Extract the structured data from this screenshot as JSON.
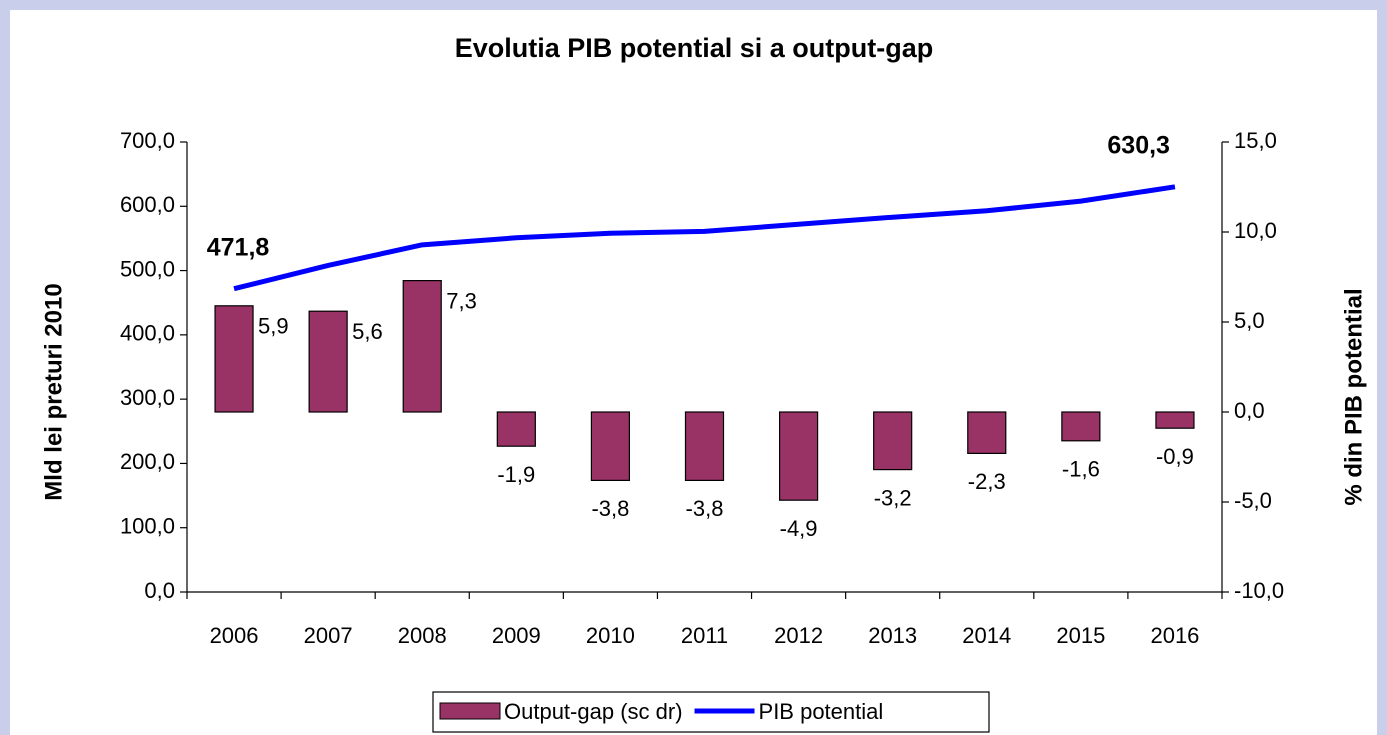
{
  "chart_data": {
    "type": "bar_line",
    "title": "Evolutia PIB potential si a output-gap",
    "y_label": "Mld lei preturi 2010",
    "y2_label": "% din PIB potential",
    "categories": [
      "2006",
      "2007",
      "2008",
      "2009",
      "2010",
      "2011",
      "2012",
      "2013",
      "2014",
      "2015",
      "2016"
    ],
    "series": [
      {
        "name": "Output-gap (sc dr)",
        "type": "bar",
        "axis": "y2",
        "color": "#993366",
        "values": [
          5.9,
          5.6,
          7.3,
          -1.9,
          -3.8,
          -3.8,
          -4.9,
          -3.2,
          -2.3,
          -1.6,
          -0.9
        ],
        "value_labels": [
          "5,9",
          "5,6",
          "7,3",
          "-1,9",
          "-3,8",
          "-3,8",
          "-4,9",
          "-3,2",
          "-2,3",
          "-1,6",
          "-0,9"
        ]
      },
      {
        "name": "PIB potential",
        "type": "line",
        "axis": "y",
        "color": "#0000ff",
        "values": [
          471.8,
          508,
          540,
          551,
          558,
          561,
          572,
          583,
          593,
          608,
          630.3
        ],
        "value_labels": [
          "471,8",
          null,
          null,
          null,
          null,
          null,
          null,
          null,
          null,
          null,
          "630,3"
        ]
      }
    ],
    "ylim": [
      0,
      700
    ],
    "yticks": [
      {
        "value": 0,
        "label": "0,0"
      },
      {
        "value": 100,
        "label": "100,0"
      },
      {
        "value": 200,
        "label": "200,0"
      },
      {
        "value": 300,
        "label": "300,0"
      },
      {
        "value": 400,
        "label": "400,0"
      },
      {
        "value": 500,
        "label": "500,0"
      },
      {
        "value": 600,
        "label": "600,0"
      },
      {
        "value": 700,
        "label": "700,0"
      }
    ],
    "y2lim": [
      -10,
      15
    ],
    "y2ticks": [
      {
        "value": -10,
        "label": "-10,0"
      },
      {
        "value": -5,
        "label": "-5,0"
      },
      {
        "value": 0,
        "label": "0,0"
      },
      {
        "value": 5,
        "label": "5,0"
      },
      {
        "value": 10,
        "label": "10,0"
      },
      {
        "value": 15,
        "label": "15,0"
      }
    ],
    "legend": "bottom"
  }
}
